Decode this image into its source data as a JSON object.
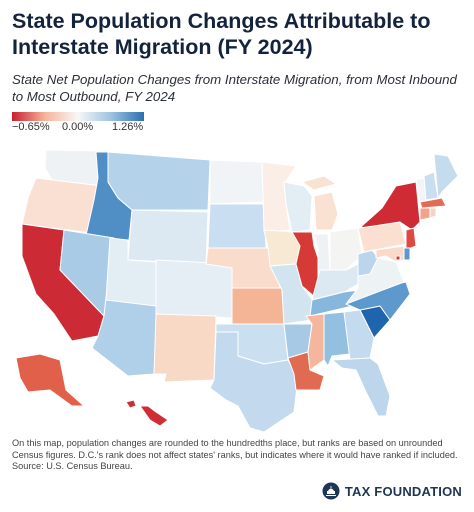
{
  "title": "State Population Changes Attributable to Interstate Migration (FY 2024)",
  "subtitle": "State Net Population Changes from Interstate Migration, from Most Inbound to Most Outbound, FY 2024",
  "legend": {
    "min_label": "−0.65%",
    "mid_label": "0.00%",
    "max_label": "1.26%",
    "low_color": "#c8202f",
    "mid_color": "#f7f7f7",
    "high_color": "#2c6fb0"
  },
  "footnote": "On this map, population changes are rounded to the hundredths place, but ranks are based on unrounded Census figures. D.C.'s rank does not affect states' ranks, but indicates where it would have ranked if included.",
  "source": "Source: U.S. Census Bureau.",
  "brand": {
    "name": "TAX FOUNDATION",
    "icon": "capitol-dome-icon"
  },
  "states": [
    {
      "code": "WA",
      "fill": "#eef2f4"
    },
    {
      "code": "OR",
      "fill": "#f9e0d2"
    },
    {
      "code": "CA",
      "fill": "#cc2b35"
    },
    {
      "code": "ID",
      "fill": "#4f8fc6"
    },
    {
      "code": "NV",
      "fill": "#a9cbe6"
    },
    {
      "code": "AZ",
      "fill": "#b0cfe8"
    },
    {
      "code": "MT",
      "fill": "#b4d2ea"
    },
    {
      "code": "WY",
      "fill": "#dce9f3"
    },
    {
      "code": "UT",
      "fill": "#e3edf4"
    },
    {
      "code": "CO",
      "fill": "#e4eef4"
    },
    {
      "code": "NM",
      "fill": "#f8d9c6"
    },
    {
      "code": "ND",
      "fill": "#f1f4f6"
    },
    {
      "code": "SD",
      "fill": "#c9def0"
    },
    {
      "code": "NE",
      "fill": "#f9dccc"
    },
    {
      "code": "KS",
      "fill": "#f4b597"
    },
    {
      "code": "OK",
      "fill": "#cadff0"
    },
    {
      "code": "TX",
      "fill": "#c2d9ee"
    },
    {
      "code": "MN",
      "fill": "#faeee6"
    },
    {
      "code": "IA",
      "fill": "#f8e9d4"
    },
    {
      "code": "MO",
      "fill": "#d3e4f1"
    },
    {
      "code": "AR",
      "fill": "#a8c9e5"
    },
    {
      "code": "LA",
      "fill": "#e06b52"
    },
    {
      "code": "WI",
      "fill": "#e3edf4"
    },
    {
      "code": "IL",
      "fill": "#d63a36"
    },
    {
      "code": "MI",
      "fill": "#fae2d3"
    },
    {
      "code": "IN",
      "fill": "#eef2f4"
    },
    {
      "code": "OH",
      "fill": "#f4f4f2"
    },
    {
      "code": "KY",
      "fill": "#dce9f3"
    },
    {
      "code": "TN",
      "fill": "#88b7dd"
    },
    {
      "code": "MS",
      "fill": "#f5b69d"
    },
    {
      "code": "AL",
      "fill": "#93bfe1"
    },
    {
      "code": "GA",
      "fill": "#c4daee"
    },
    {
      "code": "FL",
      "fill": "#bdd6ec"
    },
    {
      "code": "SC",
      "fill": "#1f65ad"
    },
    {
      "code": "NC",
      "fill": "#5d99cd"
    },
    {
      "code": "VA",
      "fill": "#edf2f4"
    },
    {
      "code": "WV",
      "fill": "#bcd5ec"
    },
    {
      "code": "PA",
      "fill": "#fbe0d2"
    },
    {
      "code": "NY",
      "fill": "#cf2b35"
    },
    {
      "code": "VT",
      "fill": "#f2f4f6"
    },
    {
      "code": "NH",
      "fill": "#c9def0"
    },
    {
      "code": "ME",
      "fill": "#c5dcef"
    },
    {
      "code": "MA",
      "fill": "#e36a55"
    },
    {
      "code": "CT",
      "fill": "#f0a58a"
    },
    {
      "code": "RI",
      "fill": "#f7d3c3"
    },
    {
      "code": "NJ",
      "fill": "#de4a42"
    },
    {
      "code": "DE",
      "fill": "#5a97cc"
    },
    {
      "code": "MD",
      "fill": "#fbd9c9"
    },
    {
      "code": "DC",
      "fill": "#d23a3a"
    },
    {
      "code": "AK",
      "fill": "#e0604a"
    },
    {
      "code": "HI",
      "fill": "#cf2c36"
    }
  ]
}
